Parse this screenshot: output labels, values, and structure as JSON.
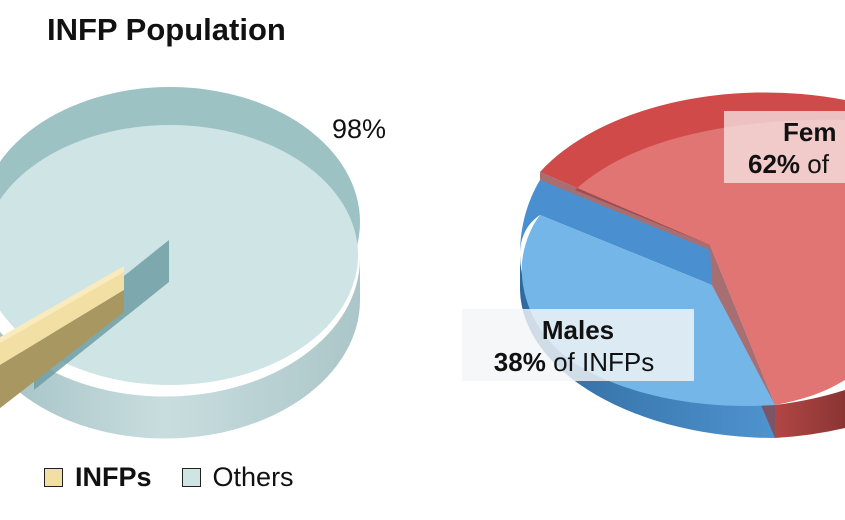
{
  "title": "INFP Population",
  "colors": {
    "infp": "#f1dfa4",
    "others": "#cfe4e4",
    "males": "#74b6e8",
    "females": "#e07573"
  },
  "chart_data": [
    {
      "type": "pie",
      "title": "INFP Population",
      "slices": [
        {
          "name": "INFPs",
          "value": 2
        },
        {
          "name": "Others",
          "value": 98
        }
      ],
      "data_labels": {
        "others": "98%"
      },
      "legend": {
        "position": "bottom-left",
        "items": [
          "INFPs",
          "Others"
        ]
      }
    },
    {
      "type": "pie",
      "slices": [
        {
          "name": "Males",
          "value": 38
        },
        {
          "name": "Females",
          "value": 62
        }
      ],
      "data_labels": {
        "males_name": "Males",
        "males_pct": "38%",
        "males_text": " of INFPs",
        "females_name": "Fem",
        "females_pct": "62%",
        "females_text": " of"
      }
    }
  ]
}
